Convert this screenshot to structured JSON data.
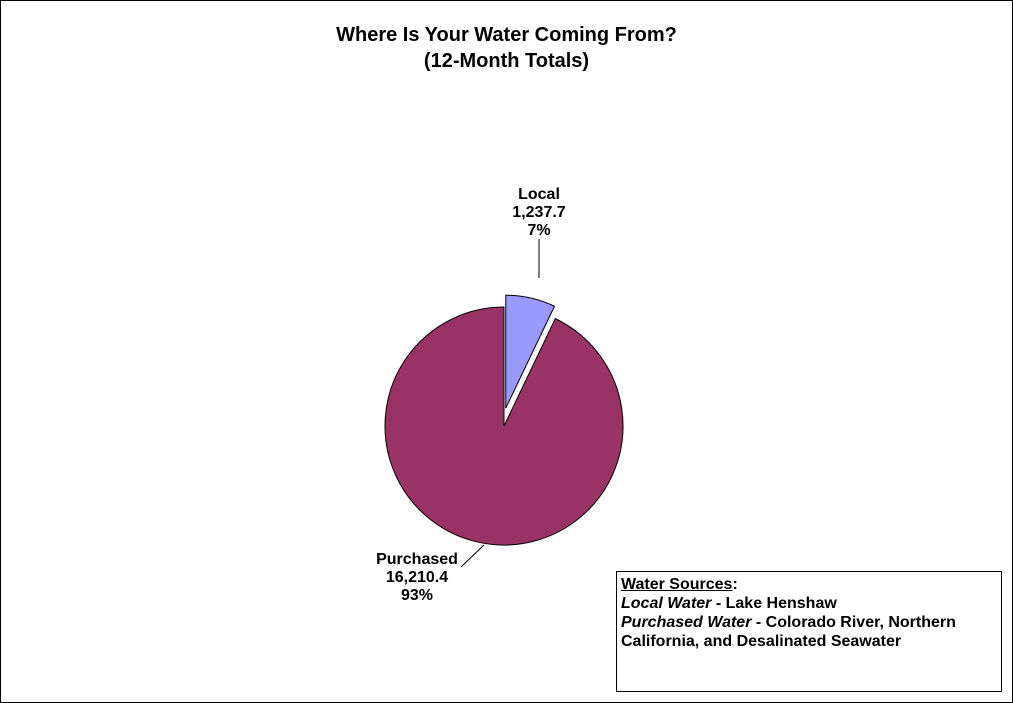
{
  "chart_data": {
    "type": "pie",
    "title": "Where Is Your Water Coming From?",
    "subtitle": "(12-Month Totals)",
    "slices": [
      {
        "label": "Local",
        "value": 1237.7,
        "value_text": "1,237.7",
        "percent_text": "7%",
        "color": "#9999ff",
        "exploded": true
      },
      {
        "label": "Purchased",
        "value": 16210.4,
        "value_text": "16,210.4",
        "percent_text": "93%",
        "color": "#993366",
        "exploded": false
      }
    ]
  },
  "legend": {
    "heading": "Water Sources",
    "heading_suffix": ":",
    "local_name": "Local Water",
    "local_desc": " - Lake Henshaw",
    "purchased_name": "Purchased Water",
    "purchased_desc": " - Colorado River, Northern California, and Desalinated Seawater"
  }
}
